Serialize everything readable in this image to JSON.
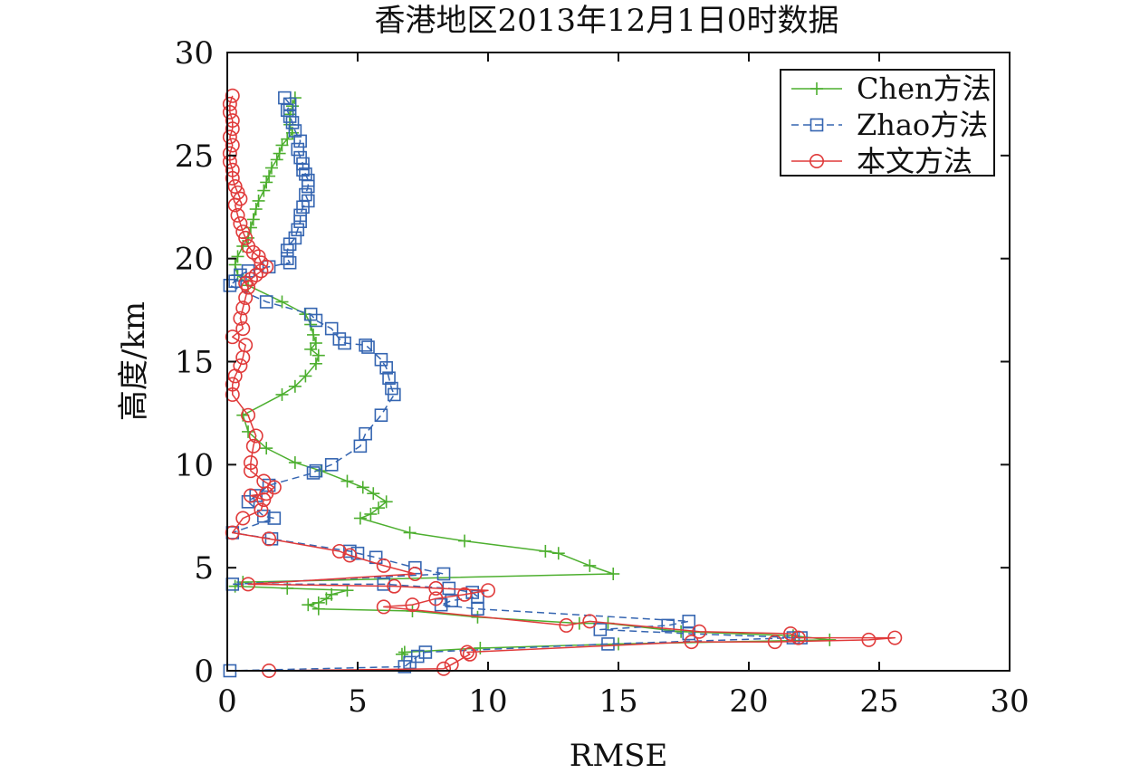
{
  "chart_data": {
    "type": "line",
    "title": "香港地区2013年12月1日0时数据",
    "xlabel": "RMSE",
    "ylabel": "高度/km",
    "xlim": [
      0,
      30
    ],
    "ylim": [
      0,
      30
    ],
    "xticks": [
      "0",
      "5",
      "10",
      "15",
      "20",
      "25",
      "30"
    ],
    "yticks": [
      "0",
      "5",
      "10",
      "15",
      "20",
      "25",
      "30"
    ],
    "grid": false,
    "legend_position": "top-right",
    "series": [
      {
        "name": "Chen方法",
        "color": "#4daf2f",
        "marker": "plus",
        "line_style": "solid",
        "points": [
          [
            2.6,
            27.8
          ],
          [
            2.5,
            27.4
          ],
          [
            2.4,
            27.0
          ],
          [
            2.4,
            26.5
          ],
          [
            2.5,
            26.1
          ],
          [
            2.3,
            25.8
          ],
          [
            2.1,
            25.5
          ],
          [
            2.0,
            25.1
          ],
          [
            1.9,
            24.8
          ],
          [
            1.7,
            24.4
          ],
          [
            1.6,
            24.0
          ],
          [
            1.5,
            23.7
          ],
          [
            1.4,
            23.3
          ],
          [
            1.2,
            22.8
          ],
          [
            1.1,
            22.4
          ],
          [
            1.0,
            21.9
          ],
          [
            0.9,
            21.5
          ],
          [
            0.8,
            21.0
          ],
          [
            0.6,
            20.6
          ],
          [
            0.4,
            20.1
          ],
          [
            0.3,
            19.7
          ],
          [
            0.4,
            19.2
          ],
          [
            0.8,
            18.7
          ],
          [
            2.1,
            17.9
          ],
          [
            3.0,
            17.3
          ],
          [
            3.2,
            16.8
          ],
          [
            3.3,
            16.3
          ],
          [
            3.4,
            15.9
          ],
          [
            3.2,
            15.6
          ],
          [
            3.5,
            15.3
          ],
          [
            3.4,
            14.9
          ],
          [
            3.0,
            14.3
          ],
          [
            2.6,
            13.8
          ],
          [
            2.1,
            13.4
          ],
          [
            0.6,
            12.4
          ],
          [
            0.8,
            11.6
          ],
          [
            1.5,
            10.8
          ],
          [
            2.6,
            10.1
          ],
          [
            3.6,
            9.7
          ],
          [
            4.6,
            9.2
          ],
          [
            5.2,
            8.9
          ],
          [
            5.6,
            8.6
          ],
          [
            6.1,
            8.2
          ],
          [
            5.8,
            7.9
          ],
          [
            5.5,
            7.6
          ],
          [
            5.1,
            7.4
          ],
          [
            7.0,
            6.7
          ],
          [
            9.1,
            6.3
          ],
          [
            12.2,
            5.8
          ],
          [
            12.7,
            5.7
          ],
          [
            13.9,
            5.1
          ],
          [
            14.8,
            4.7
          ],
          [
            0.6,
            4.3
          ],
          [
            0.3,
            4.1
          ],
          [
            2.3,
            4.0
          ],
          [
            4.6,
            3.9
          ],
          [
            4.0,
            3.7
          ],
          [
            3.8,
            3.5
          ],
          [
            3.5,
            3.3
          ],
          [
            3.1,
            3.2
          ],
          [
            3.5,
            3.0
          ],
          [
            7.1,
            2.9
          ],
          [
            9.6,
            2.6
          ],
          [
            13.5,
            2.3
          ],
          [
            14.6,
            2.3
          ],
          [
            17.4,
            1.9
          ],
          [
            21.7,
            1.7
          ],
          [
            23.1,
            1.5
          ],
          [
            15.0,
            1.3
          ],
          [
            9.7,
            1.1
          ],
          [
            6.8,
            0.9
          ],
          [
            6.7,
            0.8
          ]
        ]
      },
      {
        "name": "Zhao方法",
        "color": "#3565b1",
        "marker": "square",
        "line_style": "dashed",
        "points": [
          [
            2.2,
            27.8
          ],
          [
            2.4,
            27.5
          ],
          [
            2.3,
            27.2
          ],
          [
            2.4,
            26.9
          ],
          [
            2.5,
            26.6
          ],
          [
            2.6,
            26.2
          ],
          [
            2.8,
            25.7
          ],
          [
            2.7,
            25.3
          ],
          [
            2.8,
            24.9
          ],
          [
            2.9,
            24.6
          ],
          [
            2.9,
            24.3
          ],
          [
            3.0,
            24.1
          ],
          [
            3.1,
            23.8
          ],
          [
            3.1,
            23.5
          ],
          [
            3.0,
            23.1
          ],
          [
            3.1,
            22.8
          ],
          [
            2.9,
            22.5
          ],
          [
            2.8,
            22.1
          ],
          [
            2.8,
            21.8
          ],
          [
            2.7,
            21.4
          ],
          [
            2.6,
            21.0
          ],
          [
            2.4,
            20.7
          ],
          [
            2.3,
            20.4
          ],
          [
            2.3,
            20.0
          ],
          [
            2.4,
            19.8
          ],
          [
            1.6,
            19.6
          ],
          [
            0.8,
            19.4
          ],
          [
            0.5,
            19.2
          ],
          [
            0.3,
            18.9
          ],
          [
            0.1,
            18.7
          ],
          [
            1.5,
            17.9
          ],
          [
            3.2,
            17.3
          ],
          [
            3.4,
            17.0
          ],
          [
            4.0,
            16.6
          ],
          [
            4.3,
            16.1
          ],
          [
            4.5,
            15.9
          ],
          [
            5.3,
            15.8
          ],
          [
            5.4,
            15.7
          ],
          [
            5.9,
            15.1
          ],
          [
            6.1,
            14.7
          ],
          [
            6.2,
            14.2
          ],
          [
            6.3,
            13.7
          ],
          [
            6.4,
            13.4
          ],
          [
            5.9,
            12.4
          ],
          [
            5.3,
            11.5
          ],
          [
            5.1,
            10.9
          ],
          [
            4.0,
            10.0
          ],
          [
            3.4,
            9.7
          ],
          [
            3.3,
            9.6
          ],
          [
            1.6,
            9.0
          ],
          [
            1.1,
            8.5
          ],
          [
            0.8,
            8.2
          ],
          [
            1.4,
            7.5
          ],
          [
            1.8,
            7.4
          ],
          [
            0.2,
            6.7
          ],
          [
            1.7,
            6.4
          ],
          [
            4.7,
            5.8
          ],
          [
            5.0,
            5.7
          ],
          [
            5.7,
            5.5
          ],
          [
            7.2,
            5.0
          ],
          [
            8.3,
            4.7
          ],
          [
            0.2,
            4.2
          ],
          [
            6.0,
            4.2
          ],
          [
            8.5,
            4.0
          ],
          [
            9.4,
            3.8
          ],
          [
            9.6,
            3.6
          ],
          [
            8.6,
            3.4
          ],
          [
            8.2,
            3.2
          ],
          [
            9.6,
            3.0
          ],
          [
            17.7,
            2.4
          ],
          [
            16.9,
            2.2
          ],
          [
            14.3,
            2.0
          ],
          [
            17.7,
            1.8
          ],
          [
            22.0,
            1.6
          ],
          [
            21.7,
            1.6
          ],
          [
            14.6,
            1.3
          ],
          [
            7.6,
            0.9
          ],
          [
            7.3,
            0.7
          ],
          [
            7.0,
            0.4
          ],
          [
            6.8,
            0.2
          ],
          [
            0.1,
            0.0
          ]
        ]
      },
      {
        "name": "本文方法",
        "color": "#e03a3a",
        "marker": "circle",
        "line_style": "solid",
        "points": [
          [
            0.2,
            27.9
          ],
          [
            0.1,
            27.5
          ],
          [
            0.1,
            27.1
          ],
          [
            0.2,
            26.7
          ],
          [
            0.2,
            26.3
          ],
          [
            0.1,
            25.9
          ],
          [
            0.2,
            25.5
          ],
          [
            0.1,
            25.1
          ],
          [
            0.1,
            24.7
          ],
          [
            0.2,
            24.3
          ],
          [
            0.2,
            23.9
          ],
          [
            0.3,
            23.5
          ],
          [
            0.4,
            23.2
          ],
          [
            0.5,
            22.9
          ],
          [
            0.3,
            22.6
          ],
          [
            0.4,
            22.1
          ],
          [
            0.5,
            21.7
          ],
          [
            0.6,
            21.3
          ],
          [
            0.7,
            21.0
          ],
          [
            0.8,
            20.6
          ],
          [
            1.0,
            20.3
          ],
          [
            1.2,
            20.1
          ],
          [
            1.3,
            19.8
          ],
          [
            1.5,
            19.6
          ],
          [
            1.3,
            19.4
          ],
          [
            1.1,
            19.2
          ],
          [
            0.9,
            19.0
          ],
          [
            0.7,
            18.8
          ],
          [
            0.8,
            18.6
          ],
          [
            0.7,
            18.1
          ],
          [
            0.6,
            17.6
          ],
          [
            0.5,
            17.1
          ],
          [
            0.6,
            16.6
          ],
          [
            0.2,
            16.2
          ],
          [
            0.7,
            15.8
          ],
          [
            0.6,
            15.2
          ],
          [
            0.5,
            14.8
          ],
          [
            0.3,
            14.3
          ],
          [
            0.2,
            13.9
          ],
          [
            0.2,
            13.4
          ],
          [
            0.8,
            12.4
          ],
          [
            1.1,
            11.4
          ],
          [
            1.0,
            10.9
          ],
          [
            0.9,
            10.1
          ],
          [
            0.9,
            9.7
          ],
          [
            1.4,
            9.2
          ],
          [
            1.8,
            8.9
          ],
          [
            1.5,
            8.6
          ],
          [
            0.9,
            8.5
          ],
          [
            1.4,
            8.3
          ],
          [
            1.3,
            7.8
          ],
          [
            0.6,
            7.4
          ],
          [
            0.2,
            6.7
          ],
          [
            1.6,
            6.4
          ],
          [
            4.3,
            5.8
          ],
          [
            4.7,
            5.6
          ],
          [
            6.0,
            5.1
          ],
          [
            7.2,
            4.7
          ],
          [
            0.8,
            4.2
          ],
          [
            6.4,
            4.1
          ],
          [
            8.0,
            4.0
          ],
          [
            10.0,
            3.9
          ],
          [
            9.1,
            3.7
          ],
          [
            8.0,
            3.5
          ],
          [
            7.1,
            3.2
          ],
          [
            6.0,
            3.1
          ],
          [
            13.0,
            2.2
          ],
          [
            13.9,
            2.4
          ],
          [
            18.1,
            1.9
          ],
          [
            21.6,
            1.8
          ],
          [
            21.9,
            1.6
          ],
          [
            25.6,
            1.6
          ],
          [
            24.6,
            1.5
          ],
          [
            21.0,
            1.4
          ],
          [
            17.8,
            1.4
          ],
          [
            9.2,
            0.9
          ],
          [
            9.3,
            0.8
          ],
          [
            8.6,
            0.3
          ],
          [
            8.3,
            0.1
          ],
          [
            1.6,
            0.0
          ]
        ]
      }
    ]
  }
}
